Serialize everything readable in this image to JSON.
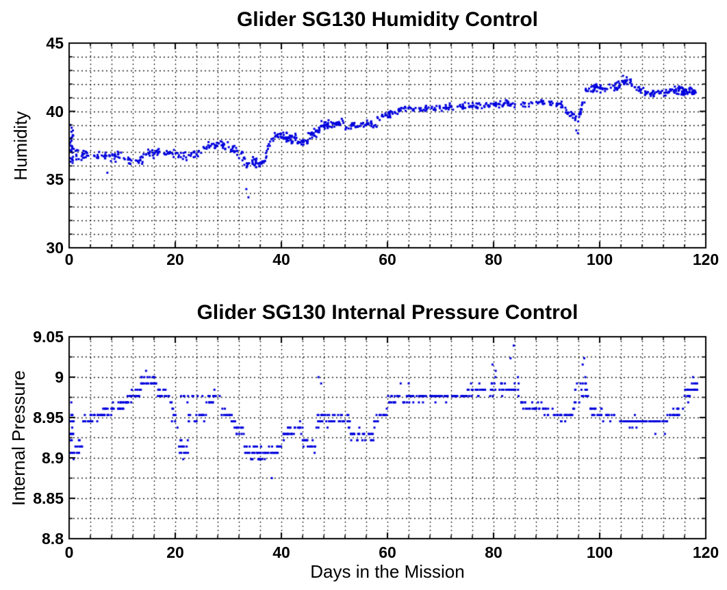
{
  "figure": {
    "background": "#ffffff",
    "marker_color": "#0000dd",
    "axis_color": "#000000",
    "grid_color": "#000000"
  },
  "plots": [
    {
      "title": "Glider SG130 Humidity Control",
      "ylabel": "Humidity",
      "xlabel": "",
      "x_ticks": {
        "labels": [
          "0",
          "20",
          "40",
          "60",
          "80",
          "100",
          "120"
        ],
        "values": [
          0,
          20,
          40,
          60,
          80,
          100,
          120
        ]
      },
      "y_ticks": {
        "labels": [
          "45",
          "40",
          "35",
          "30"
        ],
        "values": [
          45,
          40,
          35,
          30
        ]
      },
      "chart_data": {
        "type": "scatter",
        "title": "Glider SG130 Humidity Control",
        "xlabel": "",
        "ylabel": "Humidity",
        "xlim": [
          0,
          120
        ],
        "ylim": [
          30,
          45
        ],
        "x_major_ticks": [
          0,
          20,
          40,
          60,
          80,
          100,
          120
        ],
        "y_major_ticks": [
          30,
          35,
          40,
          45
        ],
        "x_minor_step": 4,
        "y_minor_step": 1,
        "grid": "dotted-minor-and-major",
        "legend": "none",
        "series": [
          {
            "name": "Humidity",
            "marker": "point",
            "color": "#0000dd",
            "seed": 7,
            "quantize_step": 0,
            "trend_segments": [
              [
                0,
                0.8,
                28,
                37.4,
                37.4,
                1.0
              ],
              [
                0.8,
                4,
                24,
                36.9,
                36.7,
                0.3
              ],
              [
                4,
                9,
                30,
                36.7,
                36.6,
                0.27
              ],
              [
                9,
                12,
                18,
                36.9,
                36.4,
                0.27
              ],
              [
                12,
                14,
                12,
                36.3,
                36.5,
                0.23
              ],
              [
                14,
                18,
                24,
                36.8,
                37.0,
                0.27
              ],
              [
                18,
                22,
                24,
                37.0,
                36.8,
                0.27
              ],
              [
                22,
                25,
                18,
                36.6,
                36.9,
                0.23
              ],
              [
                25,
                28,
                20,
                37.3,
                37.6,
                0.23
              ],
              [
                28,
                31,
                20,
                37.6,
                37.3,
                0.23
              ],
              [
                31,
                33,
                14,
                37.2,
                36.6,
                0.27
              ],
              [
                33,
                37,
                40,
                36.3,
                36.2,
                0.3
              ],
              [
                37,
                38.5,
                12,
                36.8,
                38.0,
                0.33
              ],
              [
                38.5,
                43,
                45,
                38.2,
                38.0,
                0.3
              ],
              [
                43,
                45,
                20,
                37.7,
                37.8,
                0.23
              ],
              [
                45,
                47.5,
                24,
                38.1,
                38.7,
                0.27
              ],
              [
                47.5,
                52,
                48,
                39.0,
                39.2,
                0.23
              ],
              [
                52,
                54,
                16,
                38.7,
                39.1,
                0.23
              ],
              [
                54,
                58,
                26,
                39.1,
                39.1,
                0.23
              ],
              [
                58,
                62,
                26,
                39.5,
                40.0,
                0.23
              ],
              [
                62,
                70,
                44,
                40.1,
                40.3,
                0.2
              ],
              [
                70,
                80,
                54,
                40.3,
                40.5,
                0.2
              ],
              [
                80,
                88,
                44,
                40.5,
                40.6,
                0.2
              ],
              [
                88,
                93,
                30,
                40.7,
                40.5,
                0.2
              ],
              [
                93,
                96,
                20,
                40.2,
                39.3,
                0.23
              ],
              [
                96,
                97.2,
                14,
                39.6,
                40.9,
                0.27
              ],
              [
                97.2,
                100,
                24,
                41.5,
                41.8,
                0.2
              ],
              [
                100,
                104,
                30,
                41.7,
                41.9,
                0.23
              ],
              [
                104,
                106,
                16,
                42.2,
                42.2,
                0.2
              ],
              [
                106,
                110,
                28,
                41.8,
                41.3,
                0.2
              ],
              [
                110,
                114,
                28,
                41.3,
                41.5,
                0.2
              ],
              [
                114,
                118.3,
                58,
                41.5,
                41.5,
                0.27
              ]
            ],
            "outliers": [
              [
                0.2,
                39.0
              ],
              [
                7.2,
                35.5
              ],
              [
                33.4,
                34.3
              ],
              [
                33.8,
                33.7
              ],
              [
                95.6,
                38.6
              ],
              [
                95.9,
                38.4
              ],
              [
                104.4,
                42.6
              ],
              [
                105.1,
                42.5
              ]
            ]
          }
        ]
      }
    },
    {
      "title": "Glider SG130 Internal Pressure Control",
      "ylabel": "Internal Pressure",
      "xlabel": "Days in the Mission",
      "x_ticks": {
        "labels": [
          "0",
          "20",
          "40",
          "60",
          "80",
          "100",
          "120"
        ],
        "values": [
          0,
          20,
          40,
          60,
          80,
          100,
          120
        ]
      },
      "y_ticks": {
        "labels": [
          "9.05",
          "9",
          "8.95",
          "8.9",
          "8.85",
          "8.8"
        ],
        "values": [
          9.05,
          9,
          8.95,
          8.9,
          8.85,
          8.8
        ]
      },
      "chart_data": {
        "type": "scatter",
        "title": "Glider SG130 Internal Pressure Control",
        "xlabel": "Days in the Mission",
        "ylabel": "Internal Pressure",
        "xlim": [
          0,
          120
        ],
        "ylim": [
          8.8,
          9.05
        ],
        "x_major_ticks": [
          0,
          20,
          40,
          60,
          80,
          100,
          120
        ],
        "y_major_ticks": [
          8.8,
          8.85,
          8.9,
          8.95,
          9,
          9.05
        ],
        "x_minor_step": 4,
        "y_minor_step": 0.025,
        "grid": "dotted-minor-and-major",
        "legend": "none",
        "series": [
          {
            "name": "Internal Pressure",
            "marker": "point",
            "color": "#0000dd",
            "seed": 11,
            "quantize_step": 0.0078125,
            "trend_segments": [
              [
                0,
                1,
                24,
                8.935,
                8.935,
                0.033
              ],
              [
                1,
                2.5,
                12,
                8.912,
                8.915,
                0.007
              ],
              [
                2.5,
                5,
                18,
                8.946,
                8.95,
                0.006
              ],
              [
                5,
                8,
                22,
                8.953,
                8.958,
                0.005
              ],
              [
                8,
                11,
                22,
                8.962,
                8.97,
                0.005
              ],
              [
                11,
                13.5,
                18,
                8.975,
                8.982,
                0.005
              ],
              [
                13.5,
                16.5,
                22,
                8.995,
                8.995,
                0.005
              ],
              [
                16.5,
                19,
                18,
                8.982,
                8.978,
                0.004
              ],
              [
                19,
                20.5,
                10,
                8.96,
                8.945,
                0.008
              ],
              [
                20.5,
                22.5,
                14,
                8.917,
                8.913,
                0.007
              ],
              [
                21,
                26,
                10,
                8.976,
                8.976,
                0.004
              ],
              [
                22.5,
                26,
                18,
                8.948,
                8.952,
                0.005
              ],
              [
                26,
                28.5,
                16,
                8.972,
                8.978,
                0.005
              ],
              [
                28.5,
                31,
                16,
                8.958,
                8.95,
                0.006
              ],
              [
                31,
                33,
                14,
                8.94,
                8.93,
                0.006
              ],
              [
                33,
                36,
                25,
                8.912,
                8.905,
                0.007
              ],
              [
                36,
                40,
                30,
                8.903,
                8.91,
                0.007
              ],
              [
                40,
                44,
                28,
                8.93,
                8.938,
                0.007
              ],
              [
                44,
                46.5,
                18,
                8.92,
                8.912,
                0.006
              ],
              [
                46.5,
                49,
                20,
                8.945,
                8.952,
                0.008
              ],
              [
                49,
                53,
                25,
                8.95,
                8.945,
                0.006
              ],
              [
                53,
                57.5,
                28,
                8.93,
                8.925,
                0.006
              ],
              [
                57.5,
                60,
                16,
                8.945,
                8.958,
                0.005
              ],
              [
                60,
                67,
                40,
                8.972,
                8.975,
                0.004
              ],
              [
                67,
                75,
                44,
                8.975,
                8.977,
                0.004
              ],
              [
                75,
                80,
                28,
                8.982,
                8.985,
                0.005
              ],
              [
                80,
                85,
                28,
                8.99,
                8.985,
                0.007
              ],
              [
                85,
                90,
                28,
                8.968,
                8.96,
                0.005
              ],
              [
                90,
                95,
                26,
                8.953,
                8.95,
                0.005
              ],
              [
                95,
                98,
                20,
                8.975,
                8.99,
                0.012
              ],
              [
                98,
                103,
                26,
                8.958,
                8.95,
                0.005
              ],
              [
                103,
                113,
                55,
                8.945,
                8.945,
                0.004
              ],
              [
                113,
                116,
                18,
                8.956,
                8.958,
                0.005
              ],
              [
                116,
                118.5,
                30,
                8.978,
                8.985,
                0.006
              ]
            ],
            "outliers": [
              [
                14.5,
                9.0078
              ],
              [
                15.2,
                9.0
              ],
              [
                21.5,
                8.8984
              ],
              [
                38.2,
                8.875
              ],
              [
                47.0,
                9.0
              ],
              [
                47.5,
                8.9922
              ],
              [
                62.5,
                8.9922
              ],
              [
                64.0,
                8.9922
              ],
              [
                79.8,
                9.0156
              ],
              [
                80.4,
                9.0078
              ],
              [
                83.2,
                9.0234
              ],
              [
                83.8,
                9.0391
              ],
              [
                84.6,
                9.0
              ],
              [
                96.8,
                9.0156
              ],
              [
                97.1,
                9.0234
              ],
              [
                97.3,
                9.0
              ],
              [
                110.5,
                8.9297
              ],
              [
                112.3,
                8.9297
              ],
              [
                117.6,
                9.0
              ],
              [
                118.1,
                8.9922
              ]
            ]
          }
        ]
      }
    }
  ]
}
